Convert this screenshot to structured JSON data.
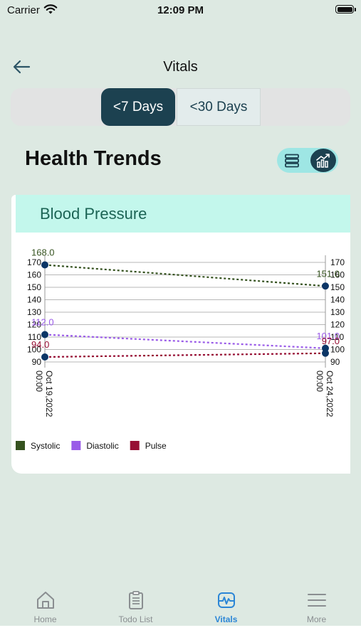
{
  "status": {
    "carrier": "Carrier",
    "time": "12:09 PM"
  },
  "header": {
    "title": "Vitals"
  },
  "range_tabs": [
    {
      "label": "<7 Days",
      "selected": true
    },
    {
      "label": "<30 Days",
      "selected": false
    }
  ],
  "section": {
    "title": "Health Trends",
    "view_mode": "chart"
  },
  "card": {
    "title": "Blood Pressure"
  },
  "chart_data": {
    "type": "line",
    "title": "Blood Pressure",
    "x": [
      "Oct 19,2022 00:00",
      "Oct 24,2022 00:00"
    ],
    "x_lines": [
      [
        "Oct 19,2022",
        "00:00"
      ],
      [
        "Oct 24,2022",
        "00:00"
      ]
    ],
    "ylim": [
      90,
      170
    ],
    "yticks": [
      90,
      100,
      110,
      120,
      130,
      140,
      150,
      160,
      170
    ],
    "dual_y_axis": true,
    "grid": true,
    "legend_position": "bottom-left",
    "series": [
      {
        "name": "Systolic",
        "color": "#35521f",
        "values": [
          168.0,
          151.0
        ],
        "labels": [
          "168.0",
          "151.0"
        ]
      },
      {
        "name": "Diastolic",
        "color": "#9a5be8",
        "values": [
          112.0,
          101.0
        ],
        "labels": [
          "112.0",
          "101.0"
        ]
      },
      {
        "name": "Pulse",
        "color": "#970f34",
        "values": [
          94.0,
          97.0
        ],
        "labels": [
          "94.0",
          "97.0"
        ]
      }
    ]
  },
  "tabbar": {
    "tabs": [
      {
        "label": "Home",
        "icon": "home-icon"
      },
      {
        "label": "Todo List",
        "icon": "clipboard-icon"
      },
      {
        "label": "Vitals",
        "icon": "vitals-icon",
        "active": true
      },
      {
        "label": "More",
        "icon": "menu-icon"
      }
    ],
    "active_color": "#2b86d6"
  },
  "colors": {
    "primary": "#1c4150",
    "background": "#dde9e2",
    "card_header": "#c3f7ec"
  }
}
